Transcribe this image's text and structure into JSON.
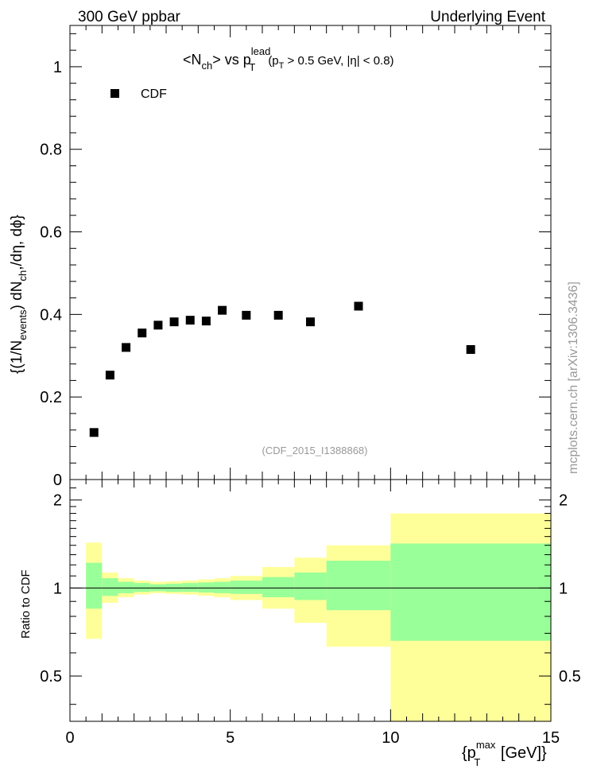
{
  "header": {
    "left": "300 GeV ppbar",
    "right": "Underlying Event"
  },
  "watermark": {
    "source": "mcplots.cern.ch [arXiv:1306.3436]",
    "analysis": "(CDF_2015_I1388868)"
  },
  "colors": {
    "band_outer": "#ffff99",
    "band_inner": "#99ff99",
    "marker": "#000000",
    "watermark": "#999999"
  },
  "chart_data": [
    {
      "type": "scatter",
      "title": "<Nch> vs pT lead (pT > 0.5 GeV, |η| < 0.8)",
      "title_parts": {
        "main": "<N",
        "sub1": "ch",
        "mid": "> vs p",
        "sup": "lead",
        "sub2": "T",
        "cut_open": "(p",
        "cut_sub": "T",
        "cut_rest": " > 0.5 GeV, |η| < 0.8)"
      },
      "ylabel": "{(1/N_events) dN_ch/dη, dφ}",
      "ylabel_parts": {
        "p1": "{(1/N",
        "s1": "events",
        "p2": ") dN",
        "s2": "ch",
        "p3": ",/dη, dϕ}"
      },
      "xlim": [
        0,
        15
      ],
      "ylim": [
        0,
        1.1
      ],
      "yticks": [
        0,
        0.2,
        0.4,
        0.6,
        0.8,
        1
      ],
      "ytick_labels": [
        "0",
        "0.2",
        "0.4",
        "0.6",
        "0.8",
        "1"
      ],
      "legend": {
        "label": "CDF",
        "position": "top-left"
      },
      "series": [
        {
          "name": "CDF",
          "x": [
            0.75,
            1.25,
            1.75,
            2.25,
            2.75,
            3.25,
            3.75,
            4.25,
            4.75,
            5.5,
            6.5,
            7.5,
            9.0,
            12.5
          ],
          "y": [
            0.114,
            0.253,
            0.32,
            0.355,
            0.374,
            0.382,
            0.386,
            0.384,
            0.41,
            0.398,
            0.398,
            0.382,
            0.42,
            0.315
          ]
        }
      ]
    },
    {
      "type": "area",
      "ylabel": "Ratio to CDF",
      "xlabel": "{p_T^max [GeV]}",
      "xlabel_parts": {
        "open": "{p",
        "sup": "max",
        "sub": "T",
        "close": " [GeV]}"
      },
      "xlim": [
        0,
        15
      ],
      "ylim": [
        0.35,
        2.35
      ],
      "yscale": "log",
      "xticks": [
        0,
        5,
        10,
        15
      ],
      "xtick_labels": [
        "0",
        "5",
        "10",
        "15"
      ],
      "yticks": [
        0.5,
        1,
        2
      ],
      "ytick_labels": [
        "0.5",
        "1",
        "2"
      ],
      "reference_line": 1,
      "bins": [
        {
          "lo": 0.5,
          "hi": 1.0,
          "inner": [
            0.85,
            1.22
          ],
          "outer": [
            0.67,
            1.43
          ]
        },
        {
          "lo": 1.0,
          "hi": 1.5,
          "inner": [
            0.94,
            1.08
          ],
          "outer": [
            0.89,
            1.13
          ]
        },
        {
          "lo": 1.5,
          "hi": 2.0,
          "inner": [
            0.96,
            1.05
          ],
          "outer": [
            0.93,
            1.08
          ]
        },
        {
          "lo": 2.0,
          "hi": 2.5,
          "inner": [
            0.97,
            1.04
          ],
          "outer": [
            0.95,
            1.06
          ]
        },
        {
          "lo": 2.5,
          "hi": 3.0,
          "inner": [
            0.975,
            1.03
          ],
          "outer": [
            0.96,
            1.05
          ]
        },
        {
          "lo": 3.0,
          "hi": 3.5,
          "inner": [
            0.97,
            1.035
          ],
          "outer": [
            0.955,
            1.055
          ]
        },
        {
          "lo": 3.5,
          "hi": 4.0,
          "inner": [
            0.97,
            1.04
          ],
          "outer": [
            0.95,
            1.06
          ]
        },
        {
          "lo": 4.0,
          "hi": 4.5,
          "inner": [
            0.965,
            1.045
          ],
          "outer": [
            0.94,
            1.07
          ]
        },
        {
          "lo": 4.5,
          "hi": 5.0,
          "inner": [
            0.96,
            1.05
          ],
          "outer": [
            0.93,
            1.08
          ]
        },
        {
          "lo": 5.0,
          "hi": 6.0,
          "inner": [
            0.955,
            1.06
          ],
          "outer": [
            0.91,
            1.1
          ]
        },
        {
          "lo": 6.0,
          "hi": 7.0,
          "inner": [
            0.93,
            1.09
          ],
          "outer": [
            0.85,
            1.18
          ]
        },
        {
          "lo": 7.0,
          "hi": 8.0,
          "inner": [
            0.91,
            1.13
          ],
          "outer": [
            0.76,
            1.27
          ]
        },
        {
          "lo": 8.0,
          "hi": 10.0,
          "inner": [
            0.84,
            1.24
          ],
          "outer": [
            0.63,
            1.4
          ]
        },
        {
          "lo": 10.0,
          "hi": 15.0,
          "inner": [
            0.66,
            1.42
          ],
          "outer": [
            0.35,
            1.8
          ]
        }
      ]
    }
  ]
}
